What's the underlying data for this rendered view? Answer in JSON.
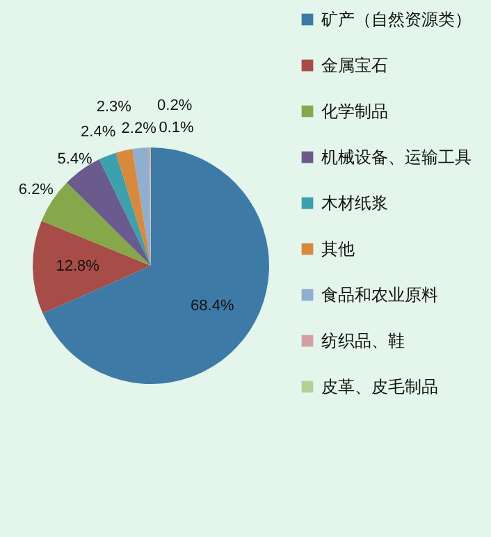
{
  "chart_data": {
    "type": "pie",
    "categories": [
      "矿产（自然资源类）",
      "金属宝石",
      "化学制品",
      "机械设备、运输工具",
      "木材纸浆",
      "其他",
      "食品和农业原料",
      "纺织品、鞋",
      "皮革、皮毛制品"
    ],
    "values": [
      68.4,
      12.8,
      6.2,
      5.4,
      2.4,
      2.3,
      2.2,
      0.2,
      0.1
    ],
    "value_labels": [
      "68.4%",
      "12.8%",
      "6.2%",
      "5.4%",
      "2.4%",
      "2.3%",
      "2.2%",
      "0.2%",
      "0.1%"
    ],
    "colors": [
      "#3e7aa6",
      "#a84c48",
      "#86a84a",
      "#6a5a8e",
      "#3da1ad",
      "#d9893c",
      "#90aed0",
      "#d4a0a6",
      "#b5cf96"
    ],
    "legend": "right"
  }
}
